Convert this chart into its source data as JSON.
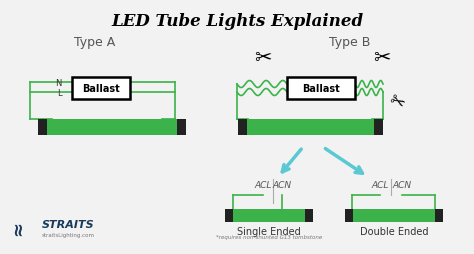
{
  "title": "LED Tube Lights Explained",
  "bg_color": "#f0f0f0",
  "white": "#ffffff",
  "green_tube": "#3cb34a",
  "green_wire": "#3cb34a",
  "ballast_fill": "white",
  "ballast_edge": "black",
  "arrow_color": "#5bc8d4",
  "type_a_label": "Type A",
  "type_b_label": "Type B",
  "single_ended_label": "Single Ended",
  "double_ended_label": "Double Ended",
  "single_note": "*requires non-shunted G13 tombstone",
  "acl_label": "ACL",
  "acn_label": "ACN",
  "straits_label": "STRAITS",
  "straits_url": "straitsLighting.com",
  "nl_label_n": "N",
  "nl_label_l": "L",
  "text_color": "#555555",
  "dark_cap": "#222222"
}
